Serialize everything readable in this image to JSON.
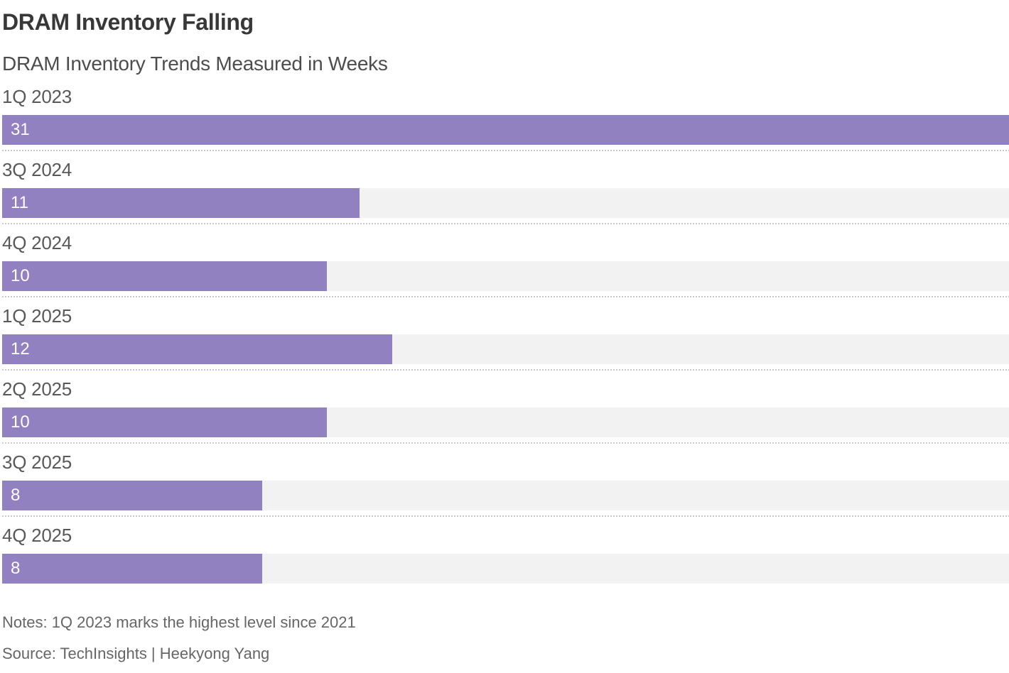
{
  "header": {
    "title": "DRAM Inventory Falling",
    "subtitle": "DRAM Inventory Trends Measured in Weeks"
  },
  "chart_data": {
    "type": "bar",
    "orientation": "horizontal",
    "title": "DRAM Inventory Falling",
    "subtitle": "DRAM Inventory Trends Measured in Weeks",
    "unit": "weeks",
    "categories": [
      "1Q 2023",
      "3Q 2024",
      "4Q 2024",
      "1Q 2025",
      "2Q 2025",
      "3Q 2025",
      "4Q 2025"
    ],
    "values": [
      31,
      11,
      10,
      12,
      10,
      8,
      8
    ],
    "xlim": [
      0,
      31
    ],
    "value_labels_shown": true,
    "grid": false,
    "legend": false,
    "bar_color": "#9181c1",
    "track_color": "#f2f2f2",
    "separator_color": "#c9c9c9"
  },
  "footer": {
    "notes": "Notes: 1Q 2023 marks the highest level since 2021",
    "source": "Source: TechInsights | Heekyong Yang"
  }
}
